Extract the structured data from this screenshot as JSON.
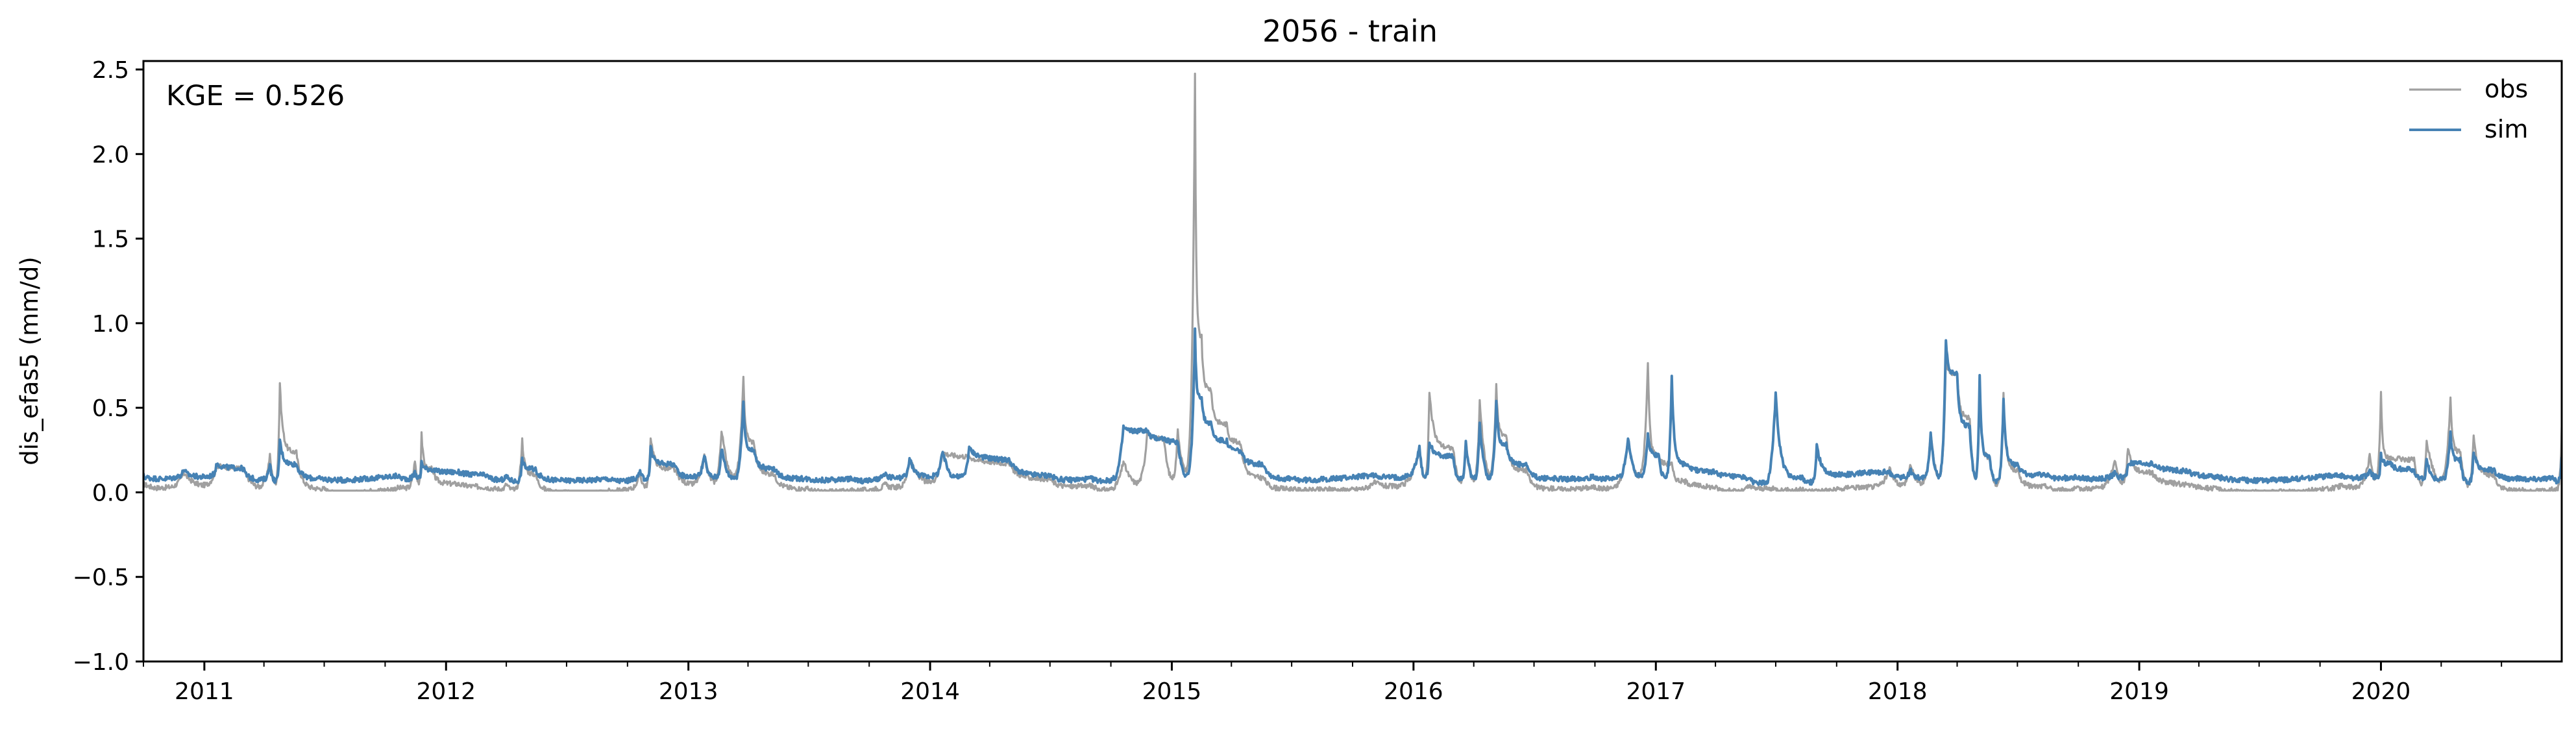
{
  "chart_data": {
    "type": "line",
    "title": "2056 - train",
    "xlabel": "",
    "ylabel": "dis_efas5 (mm/d)",
    "annotation": "KGE = 0.526",
    "xlim": [
      "2010-10-01",
      "2020-09-30"
    ],
    "ylim": [
      -1.0,
      2.55
    ],
    "yticks": [
      -1.0,
      -0.5,
      0.0,
      0.5,
      1.0,
      1.5,
      2.0,
      2.5
    ],
    "ytick_labels": [
      "−1.0",
      "−0.5",
      "0.0",
      "0.5",
      "1.0",
      "1.5",
      "2.0",
      "2.5"
    ],
    "xticks": [
      "2011-01-01",
      "2012-01-01",
      "2013-01-01",
      "2014-01-01",
      "2015-01-01",
      "2016-01-01",
      "2017-01-01",
      "2018-01-01",
      "2019-01-01",
      "2020-01-01"
    ],
    "xtick_labels": [
      "2011",
      "2012",
      "2013",
      "2014",
      "2015",
      "2016",
      "2017",
      "2018",
      "2019",
      "2020"
    ],
    "grid": false,
    "legend_position": "top-right",
    "series": [
      {
        "name": "obs",
        "color": "#a0a0a0",
        "baseline": 0.02,
        "x": [
          "2010-10-01",
          "2010-12-01",
          "2011-01-20",
          "2011-03-01",
          "2011-04-10",
          "2011-04-25",
          "2011-05-20",
          "2011-07-01",
          "2011-09-01",
          "2011-10-20",
          "2011-11-15",
          "2011-11-25",
          "2011-12-10",
          "2012-01-20",
          "2012-03-01",
          "2012-04-01",
          "2012-04-25",
          "2012-05-15",
          "2012-07-01",
          "2012-09-01",
          "2012-10-20",
          "2012-11-05",
          "2012-12-10",
          "2013-01-25",
          "2013-02-20",
          "2013-03-25",
          "2013-04-10",
          "2013-05-10",
          "2013-07-01",
          "2013-09-01",
          "2013-10-25",
          "2013-12-01",
          "2014-01-20",
          "2014-03-01",
          "2014-05-01",
          "2014-07-01",
          "2014-09-01",
          "2014-10-20",
          "2014-11-25",
          "2014-12-20",
          "2015-01-10",
          "2015-02-05",
          "2015-02-15",
          "2015-03-01",
          "2015-03-25",
          "2015-04-15",
          "2015-05-20",
          "2015-07-01",
          "2015-09-01",
          "2015-11-01",
          "2016-01-10",
          "2016-01-25",
          "2016-03-01",
          "2016-03-20",
          "2016-04-10",
          "2016-05-05",
          "2016-05-20",
          "2016-06-20",
          "2016-08-01",
          "2016-10-01",
          "2016-11-20",
          "2016-12-20",
          "2017-01-05",
          "2017-01-25",
          "2017-02-15",
          "2017-04-01",
          "2017-05-20",
          "2017-07-01",
          "2017-08-10",
          "2017-09-01",
          "2017-10-20",
          "2017-12-20",
          "2018-01-20",
          "2018-02-20",
          "2018-03-15",
          "2018-04-01",
          "2018-04-20",
          "2018-05-05",
          "2018-05-20",
          "2018-06-10",
          "2018-07-01",
          "2018-08-15",
          "2018-10-01",
          "2018-11-25",
          "2018-12-15",
          "2019-01-20",
          "2019-03-15",
          "2019-05-01",
          "2019-07-01",
          "2019-09-01",
          "2019-11-01",
          "2019-12-15",
          "2020-01-01",
          "2020-01-15",
          "2020-02-20",
          "2020-03-10",
          "2020-04-15",
          "2020-04-30",
          "2020-05-20",
          "2020-06-20",
          "2020-08-01",
          "2020-09-15",
          "2020-09-30"
        ],
        "y": [
          0.05,
          0.1,
          0.14,
          0.13,
          0.22,
          0.66,
          0.25,
          0.04,
          0.01,
          0.02,
          0.18,
          0.34,
          0.12,
          0.03,
          0.02,
          0.05,
          0.32,
          0.12,
          0.02,
          0.01,
          0.1,
          0.32,
          0.12,
          0.2,
          0.36,
          0.67,
          0.3,
          0.12,
          0.04,
          0.02,
          0.04,
          0.18,
          0.22,
          0.2,
          0.18,
          0.1,
          0.05,
          0.18,
          0.35,
          0.3,
          0.35,
          2.45,
          0.9,
          0.6,
          0.4,
          0.3,
          0.1,
          0.04,
          0.03,
          0.05,
          0.25,
          0.58,
          0.25,
          0.3,
          0.55,
          0.65,
          0.35,
          0.15,
          0.04,
          0.03,
          0.3,
          0.75,
          0.2,
          0.15,
          0.05,
          0.03,
          0.05,
          0.04,
          0.03,
          0.02,
          0.03,
          0.12,
          0.15,
          0.35,
          0.78,
          0.7,
          0.45,
          0.68,
          0.22,
          0.6,
          0.15,
          0.05,
          0.02,
          0.18,
          0.25,
          0.1,
          0.04,
          0.03,
          0.02,
          0.02,
          0.03,
          0.2,
          0.58,
          0.18,
          0.18,
          0.3,
          0.56,
          0.25,
          0.35,
          0.12,
          0.03,
          0.02,
          0.37
        ]
      },
      {
        "name": "sim",
        "color": "#4682b4",
        "baseline": 0.09,
        "x": [
          "2010-10-01",
          "2010-12-01",
          "2011-01-20",
          "2011-03-01",
          "2011-04-10",
          "2011-04-25",
          "2011-05-20",
          "2011-07-01",
          "2011-09-01",
          "2011-10-20",
          "2011-11-15",
          "2011-11-25",
          "2011-12-10",
          "2012-01-20",
          "2012-03-01",
          "2012-04-01",
          "2012-04-25",
          "2012-05-15",
          "2012-07-01",
          "2012-09-01",
          "2012-10-20",
          "2012-11-05",
          "2012-12-10",
          "2013-01-25",
          "2013-02-20",
          "2013-03-25",
          "2013-04-10",
          "2013-05-10",
          "2013-07-01",
          "2013-09-01",
          "2013-10-25",
          "2013-12-01",
          "2014-01-20",
          "2014-03-01",
          "2014-05-01",
          "2014-07-01",
          "2014-09-01",
          "2014-10-20",
          "2014-11-25",
          "2014-12-20",
          "2015-01-10",
          "2015-02-05",
          "2015-02-15",
          "2015-03-01",
          "2015-03-25",
          "2015-04-15",
          "2015-05-20",
          "2015-07-01",
          "2015-09-01",
          "2015-11-01",
          "2016-01-10",
          "2016-01-25",
          "2016-03-01",
          "2016-03-20",
          "2016-04-10",
          "2016-05-05",
          "2016-05-20",
          "2016-06-20",
          "2016-08-01",
          "2016-10-01",
          "2016-11-20",
          "2016-12-20",
          "2017-01-05",
          "2017-01-25",
          "2017-02-15",
          "2017-04-01",
          "2017-05-20",
          "2017-07-01",
          "2017-08-10",
          "2017-09-01",
          "2017-10-20",
          "2017-12-20",
          "2018-01-20",
          "2018-02-20",
          "2018-03-15",
          "2018-04-01",
          "2018-04-20",
          "2018-05-05",
          "2018-05-20",
          "2018-06-10",
          "2018-07-01",
          "2018-08-15",
          "2018-10-01",
          "2018-11-25",
          "2018-12-15",
          "2019-01-20",
          "2019-03-15",
          "2019-05-01",
          "2019-07-01",
          "2019-09-01",
          "2019-11-01",
          "2019-12-15",
          "2020-01-01",
          "2020-01-15",
          "2020-02-20",
          "2020-03-10",
          "2020-04-15",
          "2020-04-30",
          "2020-05-20",
          "2020-06-20",
          "2020-08-01",
          "2020-09-15",
          "2020-09-30"
        ],
        "y": [
          0.1,
          0.12,
          0.15,
          0.13,
          0.18,
          0.32,
          0.18,
          0.1,
          0.09,
          0.09,
          0.12,
          0.17,
          0.12,
          0.1,
          0.09,
          0.1,
          0.2,
          0.15,
          0.09,
          0.09,
          0.12,
          0.25,
          0.15,
          0.2,
          0.25,
          0.52,
          0.25,
          0.15,
          0.1,
          0.09,
          0.1,
          0.18,
          0.22,
          0.25,
          0.2,
          0.12,
          0.09,
          0.38,
          0.35,
          0.3,
          0.28,
          0.94,
          0.55,
          0.4,
          0.3,
          0.25,
          0.18,
          0.1,
          0.09,
          0.09,
          0.25,
          0.28,
          0.2,
          0.3,
          0.4,
          0.55,
          0.3,
          0.18,
          0.1,
          0.09,
          0.3,
          0.33,
          0.2,
          0.66,
          0.15,
          0.12,
          0.1,
          0.6,
          0.1,
          0.28,
          0.1,
          0.1,
          0.12,
          0.33,
          0.9,
          0.7,
          0.4,
          0.7,
          0.22,
          0.58,
          0.18,
          0.12,
          0.09,
          0.1,
          0.15,
          0.15,
          0.12,
          0.1,
          0.09,
          0.09,
          0.09,
          0.12,
          0.2,
          0.15,
          0.12,
          0.18,
          0.36,
          0.2,
          0.25,
          0.15,
          0.1,
          0.09,
          0.22
        ]
      }
    ]
  }
}
